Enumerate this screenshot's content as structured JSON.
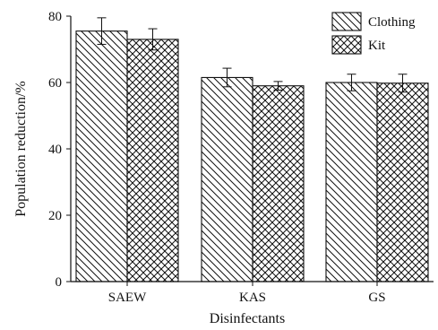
{
  "chart_data": {
    "type": "bar",
    "categories": [
      "SAEW",
      "KAS",
      "GS"
    ],
    "series": [
      {
        "name": "Clothing",
        "values": [
          75.5,
          61.5,
          60.0
        ],
        "errors": [
          4.0,
          2.8,
          2.5
        ],
        "pattern": "diagonal-hatch"
      },
      {
        "name": "Kit",
        "values": [
          73.0,
          59.0,
          59.8
        ],
        "errors": [
          3.2,
          1.3,
          2.7
        ],
        "pattern": "crosshatch"
      }
    ],
    "xlabel": "Disinfectants",
    "ylabel": "Population reduction/%",
    "ylim": [
      0,
      80
    ],
    "yticks": [
      0,
      20,
      40,
      60,
      80
    ],
    "grid": false,
    "legend_position": "top-right"
  }
}
